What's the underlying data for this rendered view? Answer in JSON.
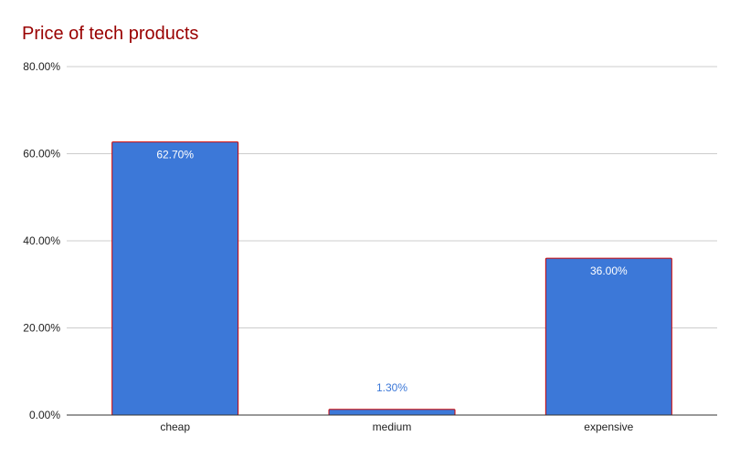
{
  "chart_data": {
    "type": "bar",
    "title": "Price of tech products",
    "categories": [
      "cheap",
      "medium",
      "expensive"
    ],
    "values": [
      62.7,
      1.3,
      36.0
    ],
    "data_labels": [
      "62.70%",
      "1.30%",
      "36.00%"
    ],
    "ylim": [
      0,
      80
    ],
    "yticks": [
      0,
      20,
      40,
      60,
      80
    ],
    "ytick_labels": [
      "0.00%",
      "20.00%",
      "40.00%",
      "60.00%",
      "80.00%"
    ],
    "xlabel": "",
    "ylabel": "",
    "grid": true,
    "legend": "none",
    "colors": {
      "bar_fill": "#3c78d8",
      "bar_stroke": "#cc0000",
      "title": "#990000",
      "grid": "#cccccc",
      "axis": "#333333",
      "label_inside": "#ffffff",
      "label_outside": "#3c78d8"
    }
  }
}
